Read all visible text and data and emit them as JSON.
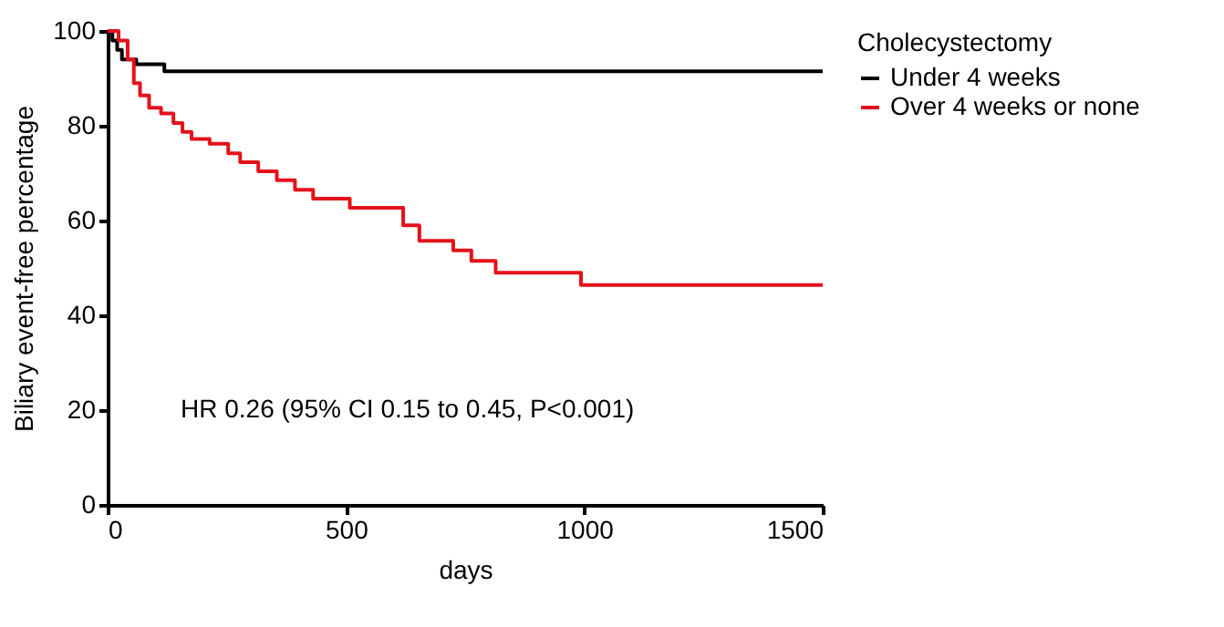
{
  "chart_data": {
    "type": "step",
    "xlabel": "days",
    "ylabel": "Biliary event-free percentage",
    "legend_title": "Cholecystectomy",
    "series": [
      {
        "name": "Under 4 weeks",
        "color": "#000000",
        "x": [
          0,
          10,
          20,
          30,
          60,
          119,
          1500
        ],
        "values": [
          100,
          98,
          96,
          94,
          93,
          91.5,
          91.5
        ]
      },
      {
        "name": "Over 4 weeks or none",
        "color": "#e3121b",
        "x": [
          0,
          23,
          42,
          55,
          68,
          87,
          112,
          138,
          157,
          176,
          214,
          253,
          278,
          316,
          355,
          393,
          431,
          508,
          620,
          654,
          725,
          763,
          814,
          993,
          1500
        ],
        "values": [
          100,
          98,
          94,
          89,
          86.4,
          83.8,
          82.6,
          80.6,
          78.7,
          77.2,
          76.2,
          74.2,
          72.3,
          70.4,
          68.5,
          66.5,
          64.6,
          62.7,
          59,
          55.7,
          53.7,
          51.5,
          49,
          46.4,
          46.4
        ]
      }
    ],
    "xlim": [
      0,
      1500
    ],
    "xticks": [
      0,
      500,
      1000,
      1500
    ],
    "ylim": [
      0,
      100
    ],
    "yticks": [
      0,
      20,
      40,
      60,
      80,
      100
    ],
    "annotations": [
      "HR 0.26 (95% CI 0.15 to 0.45, P<0.001)"
    ],
    "legend": "top right",
    "grid": false,
    "marker": "none",
    "line_style": "solid"
  }
}
